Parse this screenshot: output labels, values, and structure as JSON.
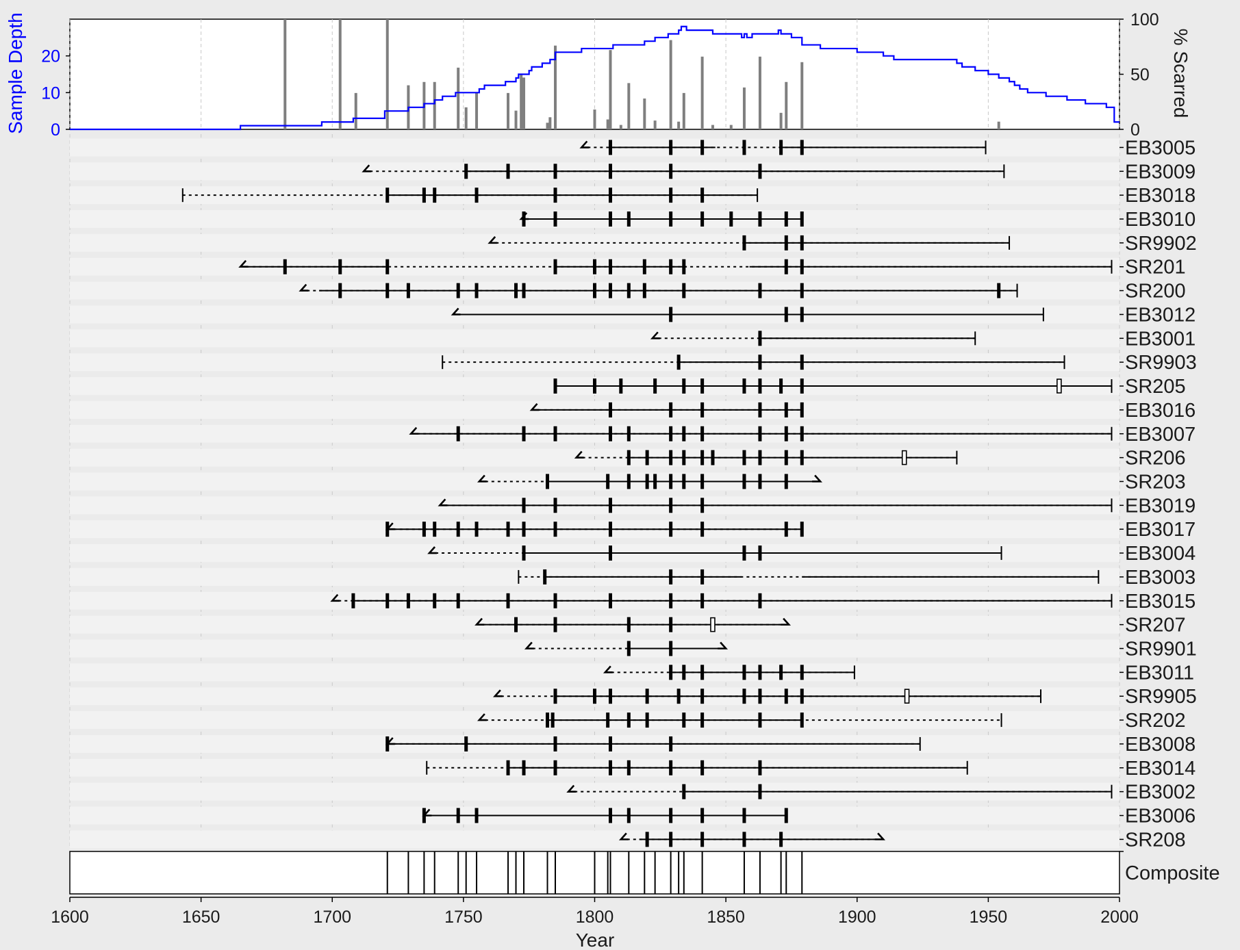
{
  "chart_data": {
    "type": "fire-history",
    "title": "",
    "xlabel": "Year",
    "xlim": [
      1600,
      2000
    ],
    "x_ticks": [
      1600,
      1650,
      1700,
      1750,
      1800,
      1850,
      1900,
      1950,
      2000
    ],
    "grid": true,
    "colors": {
      "sample_depth": "#0000ff",
      "bars": "#7f7f7f",
      "ink": "#000000",
      "band": "#f2f2f2",
      "panel_bg": "#ffffff"
    },
    "sample_depth_axis": {
      "label": "Sample Depth",
      "ylim": [
        0,
        30
      ],
      "ticks": [
        0,
        10,
        20
      ]
    },
    "percent_scarred_axis": {
      "label": "% Scarred",
      "ylim": [
        0,
        100
      ],
      "ticks": [
        0,
        50,
        100
      ]
    },
    "sample_depth": [
      [
        1600,
        0
      ],
      [
        1665,
        1
      ],
      [
        1696,
        2
      ],
      [
        1708,
        3
      ],
      [
        1720,
        5
      ],
      [
        1729,
        6
      ],
      [
        1735,
        7
      ],
      [
        1739,
        8
      ],
      [
        1742,
        9
      ],
      [
        1747,
        10
      ],
      [
        1756,
        11
      ],
      [
        1758,
        12
      ],
      [
        1766,
        13
      ],
      [
        1770,
        14
      ],
      [
        1771,
        15
      ],
      [
        1775,
        16
      ],
      [
        1776,
        17
      ],
      [
        1780,
        18
      ],
      [
        1783,
        19
      ],
      [
        1785,
        21
      ],
      [
        1795,
        22
      ],
      [
        1807,
        23
      ],
      [
        1819,
        24
      ],
      [
        1823,
        25
      ],
      [
        1828,
        26
      ],
      [
        1832,
        27
      ],
      [
        1833,
        28
      ],
      [
        1835,
        27
      ],
      [
        1840,
        27
      ],
      [
        1845,
        26
      ],
      [
        1856,
        25
      ],
      [
        1857,
        26
      ],
      [
        1858,
        25
      ],
      [
        1860,
        26
      ],
      [
        1870,
        27
      ],
      [
        1871,
        26
      ],
      [
        1875,
        25
      ],
      [
        1879,
        23
      ],
      [
        1886,
        22
      ],
      [
        1900,
        21
      ],
      [
        1910,
        20
      ],
      [
        1914,
        19
      ],
      [
        1938,
        18
      ],
      [
        1940,
        17
      ],
      [
        1945,
        16
      ],
      [
        1950,
        15
      ],
      [
        1954,
        14
      ],
      [
        1958,
        13
      ],
      [
        1960,
        12
      ],
      [
        1962,
        11
      ],
      [
        1965,
        10
      ],
      [
        1972,
        9
      ],
      [
        1980,
        8
      ],
      [
        1987,
        7
      ],
      [
        1995,
        6
      ],
      [
        1998,
        2
      ],
      [
        2000,
        2
      ]
    ],
    "percent_scarred": [
      [
        1682,
        100
      ],
      [
        1703,
        100
      ],
      [
        1709,
        33
      ],
      [
        1721,
        100
      ],
      [
        1729,
        40
      ],
      [
        1735,
        43
      ],
      [
        1739,
        43
      ],
      [
        1748,
        56
      ],
      [
        1751,
        20
      ],
      [
        1755,
        33
      ],
      [
        1767,
        33
      ],
      [
        1770,
        17
      ],
      [
        1772,
        50
      ],
      [
        1773,
        47
      ],
      [
        1782,
        6
      ],
      [
        1783,
        11
      ],
      [
        1785,
        76
      ],
      [
        1800,
        18
      ],
      [
        1805,
        9
      ],
      [
        1806,
        72
      ],
      [
        1810,
        4
      ],
      [
        1813,
        42
      ],
      [
        1819,
        28
      ],
      [
        1823,
        8
      ],
      [
        1829,
        81
      ],
      [
        1832,
        7
      ],
      [
        1834,
        33
      ],
      [
        1841,
        66
      ],
      [
        1845,
        4
      ],
      [
        1852,
        4
      ],
      [
        1857,
        38
      ],
      [
        1863,
        66
      ],
      [
        1871,
        15
      ],
      [
        1873,
        43
      ],
      [
        1879,
        61
      ],
      [
        1954,
        7
      ]
    ],
    "series": [
      {
        "name": "EB3005",
        "first": 1795,
        "last": 1949,
        "first_type": "pith",
        "last_type": "bark",
        "recorder": [
          [
            1806,
            1846
          ],
          [
            1871,
            1949
          ]
        ],
        "scars": [
          1806,
          1829,
          1841,
          1857,
          1871,
          1879
        ],
        "injuries": []
      },
      {
        "name": "EB3009",
        "first": 1712,
        "last": 1956,
        "first_type": "pith",
        "last_type": "bark",
        "recorder": [
          [
            1751,
            1956
          ]
        ],
        "scars": [
          1751,
          1767,
          1785,
          1806,
          1829,
          1863
        ],
        "injuries": []
      },
      {
        "name": "EB3018",
        "first": 1643,
        "last": 1862,
        "first_type": "inner",
        "last_type": "bark",
        "recorder": [
          [
            1721,
            1862
          ]
        ],
        "scars": [
          1721,
          1735,
          1739,
          1755,
          1785,
          1806,
          1829,
          1841
        ],
        "injuries": []
      },
      {
        "name": "EB3010",
        "first": 1772,
        "last": 1879,
        "first_type": "pith",
        "last_type": "bark",
        "recorder": [
          [
            1772,
            1879
          ]
        ],
        "scars": [
          1773,
          1785,
          1806,
          1813,
          1829,
          1841,
          1852,
          1863,
          1873,
          1879
        ],
        "injuries": []
      },
      {
        "name": "SR9902",
        "first": 1760,
        "last": 1958,
        "first_type": "pith",
        "last_type": "bark",
        "recorder": [
          [
            1857,
            1958
          ]
        ],
        "scars": [
          1857,
          1873,
          1879
        ],
        "injuries": []
      },
      {
        "name": "SR201",
        "first": 1665,
        "last": 1997,
        "first_type": "pith",
        "last_type": "bark",
        "recorder": [
          [
            1665,
            1721
          ],
          [
            1785,
            1835
          ],
          [
            1859,
            1997
          ]
        ],
        "scars": [
          1682,
          1703,
          1721,
          1785,
          1800,
          1806,
          1819,
          1829,
          1834,
          1873,
          1879
        ],
        "injuries": []
      },
      {
        "name": "SR200",
        "first": 1688,
        "last": 1961,
        "first_type": "pith",
        "last_type": "bark",
        "recorder": [
          [
            1695,
            1961
          ]
        ],
        "scars": [
          1703,
          1721,
          1729,
          1748,
          1755,
          1770,
          1773,
          1800,
          1806,
          1813,
          1819,
          1834,
          1863,
          1879,
          1954
        ],
        "injuries": []
      },
      {
        "name": "EB3012",
        "first": 1746,
        "last": 1971,
        "first_type": "pith",
        "last_type": "bark",
        "recorder": [
          [
            1746,
            1971
          ]
        ],
        "scars": [
          1829,
          1873,
          1879
        ],
        "injuries": []
      },
      {
        "name": "EB3001",
        "first": 1822,
        "last": 1945,
        "first_type": "pith",
        "last_type": "bark",
        "recorder": [
          [
            1863,
            1945
          ]
        ],
        "scars": [
          1863
        ],
        "injuries": []
      },
      {
        "name": "SR9903",
        "first": 1742,
        "last": 1979,
        "first_type": "inner",
        "last_type": "bark",
        "recorder": [
          [
            1832,
            1979
          ]
        ],
        "scars": [
          1832,
          1863,
          1879
        ],
        "injuries": []
      },
      {
        "name": "SR205",
        "first": 1785,
        "last": 1997,
        "first_type": "inner",
        "last_type": "bark",
        "recorder": [
          [
            1785,
            1997
          ]
        ],
        "scars": [
          1785,
          1800,
          1810,
          1823,
          1834,
          1841,
          1857,
          1863,
          1871,
          1879
        ],
        "injuries": [
          1977
        ]
      },
      {
        "name": "EB3016",
        "first": 1776,
        "last": 1879,
        "first_type": "pith",
        "last_type": "bark",
        "recorder": [
          [
            1776,
            1879
          ]
        ],
        "scars": [
          1806,
          1829,
          1841,
          1863,
          1873,
          1879
        ],
        "injuries": []
      },
      {
        "name": "EB3007",
        "first": 1730,
        "last": 1997,
        "first_type": "pith",
        "last_type": "bark",
        "recorder": [
          [
            1730,
            1997
          ]
        ],
        "scars": [
          1748,
          1773,
          1785,
          1806,
          1813,
          1829,
          1834,
          1841,
          1863,
          1873,
          1879
        ],
        "injuries": []
      },
      {
        "name": "SR206",
        "first": 1793,
        "last": 1938,
        "first_type": "pith",
        "last_type": "bark",
        "recorder": [
          [
            1813,
            1938
          ]
        ],
        "scars": [
          1813,
          1820,
          1829,
          1834,
          1841,
          1845,
          1857,
          1863,
          1873,
          1879
        ],
        "injuries": [
          1918
        ]
      },
      {
        "name": "SR203",
        "first": 1756,
        "last": 1886,
        "first_type": "pith",
        "last_type": "outer",
        "recorder": [
          [
            1782,
            1886
          ]
        ],
        "scars": [
          1782,
          1805,
          1813,
          1820,
          1823,
          1829,
          1834,
          1841,
          1857,
          1863,
          1873
        ],
        "injuries": []
      },
      {
        "name": "EB3019",
        "first": 1741,
        "last": 1997,
        "first_type": "pith",
        "last_type": "bark",
        "recorder": [
          [
            1741,
            1997
          ]
        ],
        "scars": [
          1773,
          1785,
          1806,
          1829,
          1841
        ],
        "injuries": []
      },
      {
        "name": "EB3017",
        "first": 1721,
        "last": 1879,
        "first_type": "pith",
        "last_type": "bark",
        "recorder": [
          [
            1721,
            1879
          ]
        ],
        "scars": [
          1721,
          1735,
          1739,
          1748,
          1755,
          1767,
          1773,
          1785,
          1806,
          1829,
          1841,
          1873,
          1879
        ],
        "injuries": []
      },
      {
        "name": "EB3004",
        "first": 1737,
        "last": 1955,
        "first_type": "pith",
        "last_type": "bark",
        "recorder": [
          [
            1773,
            1955
          ]
        ],
        "scars": [
          1773,
          1806,
          1857,
          1863
        ],
        "injuries": []
      },
      {
        "name": "EB3003",
        "first": 1771,
        "last": 1992,
        "first_type": "inner",
        "last_type": "bark",
        "recorder": [
          [
            1781,
            1856
          ],
          [
            1879,
            1992
          ]
        ],
        "scars": [
          1781,
          1829,
          1841
        ],
        "injuries": []
      },
      {
        "name": "EB3015",
        "first": 1700,
        "last": 1997,
        "first_type": "pith",
        "last_type": "bark",
        "recorder": [
          [
            1708,
            1997
          ]
        ],
        "scars": [
          1708,
          1721,
          1729,
          1739,
          1748,
          1767,
          1785,
          1806,
          1829,
          1841,
          1863
        ],
        "injuries": []
      },
      {
        "name": "SR207",
        "first": 1755,
        "last": 1874,
        "first_type": "pith",
        "last_type": "outer",
        "recorder": [
          [
            1755,
            1874
          ]
        ],
        "scars": [
          1770,
          1785,
          1813,
          1829
        ],
        "injuries": [
          1845
        ]
      },
      {
        "name": "SR9901",
        "first": 1774,
        "last": 1850,
        "first_type": "pith",
        "last_type": "outer",
        "recorder": [
          [
            1813,
            1850
          ]
        ],
        "scars": [
          1813,
          1829
        ],
        "injuries": []
      },
      {
        "name": "EB3011",
        "first": 1804,
        "last": 1899,
        "first_type": "pith",
        "last_type": "bark",
        "recorder": [
          [
            1829,
            1899
          ]
        ],
        "scars": [
          1829,
          1834,
          1841,
          1857,
          1863,
          1871,
          1879
        ],
        "injuries": []
      },
      {
        "name": "SR9905",
        "first": 1762,
        "last": 1970,
        "first_type": "pith",
        "last_type": "bark",
        "recorder": [
          [
            1785,
            1970
          ]
        ],
        "scars": [
          1785,
          1800,
          1806,
          1820,
          1832,
          1841,
          1857,
          1863,
          1873,
          1879
        ],
        "injuries": [
          1919
        ]
      },
      {
        "name": "SR202",
        "first": 1756,
        "last": 1955,
        "first_type": "pith",
        "last_type": "bark",
        "recorder": [
          [
            1782,
            1879
          ]
        ],
        "scars": [
          1782,
          1784,
          1805,
          1813,
          1820,
          1834,
          1841,
          1863,
          1879
        ],
        "injuries": []
      },
      {
        "name": "EB3008",
        "first": 1721,
        "last": 1924,
        "first_type": "pith",
        "last_type": "bark",
        "recorder": [
          [
            1721,
            1924
          ]
        ],
        "scars": [
          1721,
          1751,
          1785,
          1806,
          1829
        ],
        "injuries": []
      },
      {
        "name": "EB3014",
        "first": 1736,
        "last": 1942,
        "first_type": "inner",
        "last_type": "bark",
        "recorder": [
          [
            1767,
            1942
          ]
        ],
        "scars": [
          1767,
          1773,
          1785,
          1806,
          1813,
          1829,
          1841,
          1863
        ],
        "injuries": []
      },
      {
        "name": "EB3002",
        "first": 1790,
        "last": 1997,
        "first_type": "pith",
        "last_type": "bark",
        "recorder": [
          [
            1834,
            1997
          ]
        ],
        "scars": [
          1834,
          1863
        ],
        "injuries": []
      },
      {
        "name": "EB3006",
        "first": 1735,
        "last": 1873,
        "first_type": "pith",
        "last_type": "bark",
        "recorder": [
          [
            1735,
            1873
          ]
        ],
        "scars": [
          1735,
          1748,
          1755,
          1806,
          1813,
          1829,
          1841,
          1857,
          1873
        ],
        "injuries": []
      },
      {
        "name": "SR208",
        "first": 1810,
        "last": 1910,
        "first_type": "pith",
        "last_type": "outer",
        "recorder": [
          [
            1817,
            1910
          ]
        ],
        "scars": [
          1820,
          1829,
          1841,
          1857,
          1871
        ],
        "injuries": []
      }
    ],
    "composite": {
      "label": "Composite",
      "years": [
        1721,
        1729,
        1735,
        1739,
        1748,
        1751,
        1755,
        1767,
        1770,
        1773,
        1782,
        1785,
        1800,
        1805,
        1806,
        1813,
        1819,
        1823,
        1829,
        1832,
        1834,
        1841,
        1857,
        1863,
        1871,
        1873,
        1879
      ]
    }
  }
}
